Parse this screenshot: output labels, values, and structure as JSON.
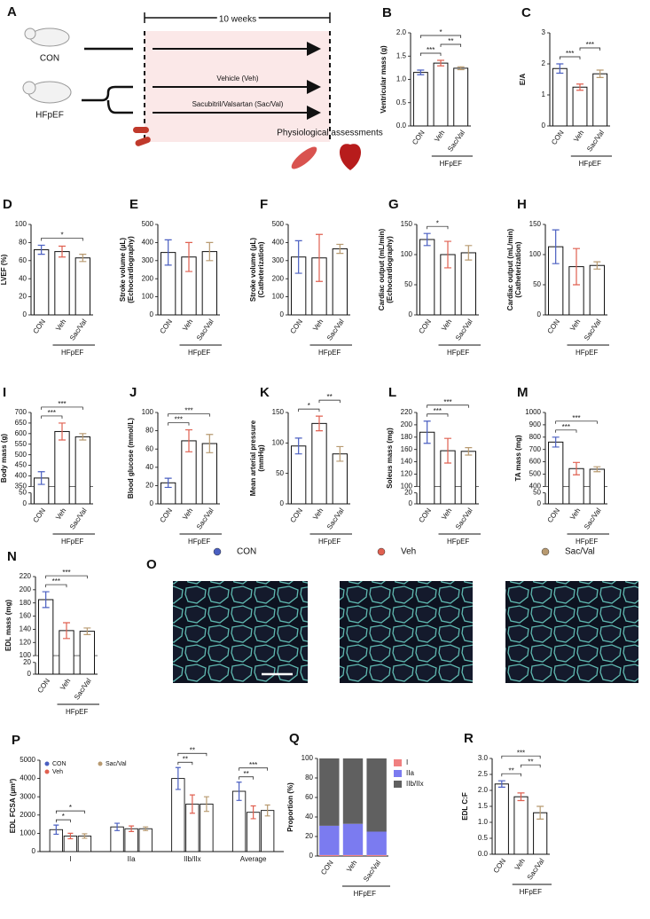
{
  "diagram": {
    "panel": "A",
    "duration": "10 weeks",
    "groups": [
      "CON",
      "HFpEF"
    ],
    "treatments": [
      "Vehicle (Veh)",
      "Sacubitril/Valsartan (Sac/Val)"
    ],
    "assessment": "Physiological assessments"
  },
  "histology": {
    "panel": "O",
    "legend": [
      {
        "name": "CON",
        "color": "#4a5fc1"
      },
      {
        "name": "Veh",
        "color": "#e06050"
      },
      {
        "name": "Sac/Val",
        "color": "#b89a70"
      }
    ]
  },
  "chart_data": [
    {
      "type": "bar",
      "panel": "B",
      "ylabel": [
        "Ventricular mass (g)"
      ],
      "categories": [
        "CON",
        "Veh",
        "Sac/Val"
      ],
      "group_label": "HFpEF",
      "values": [
        1.15,
        1.35,
        1.24
      ],
      "errors": [
        0.05,
        0.06,
        0.03
      ],
      "colors": [
        "#4a5fc1",
        "#e06050",
        "#b89a70"
      ],
      "ylim": [
        0,
        2
      ],
      "yticks": [
        {
          "value": 0,
          "label": "0.0"
        },
        0.5,
        {
          "value": 1,
          "label": "1.0"
        },
        1.5,
        {
          "value": 2,
          "label": "2.0"
        }
      ],
      "significance": [
        {
          "pair": [
            "CON",
            "Veh"
          ],
          "label": "***"
        },
        {
          "pair": [
            "Veh",
            "Sac/Val"
          ],
          "label": "**"
        },
        {
          "pair": [
            "CON",
            "Sac/Val"
          ],
          "label": "*"
        }
      ]
    },
    {
      "type": "bar",
      "panel": "C",
      "ylabel": [
        "E/A"
      ],
      "categories": [
        "CON",
        "Veh",
        "Sac/Val"
      ],
      "group_label": "HFpEF",
      "values": [
        1.85,
        1.25,
        1.68
      ],
      "errors": [
        0.15,
        0.1,
        0.12
      ],
      "colors": [
        "#4a5fc1",
        "#e06050",
        "#b89a70"
      ],
      "ylim": [
        0,
        3
      ],
      "yticks": [
        0,
        1,
        2,
        3
      ],
      "significance": [
        {
          "pair": [
            "CON",
            "Veh"
          ],
          "label": "***"
        },
        {
          "pair": [
            "Veh",
            "Sac/Val"
          ],
          "label": "***"
        }
      ]
    },
    {
      "type": "bar",
      "panel": "D",
      "ylabel": [
        "LVEF (%)"
      ],
      "categories": [
        "CON",
        "Veh",
        "Sac/Val"
      ],
      "group_label": "HFpEF",
      "values": [
        72,
        70,
        63
      ],
      "errors": [
        5,
        6,
        4
      ],
      "colors": [
        "#4a5fc1",
        "#e06050",
        "#b89a70"
      ],
      "ylim": [
        0,
        100
      ],
      "yticks": [
        0,
        20,
        40,
        60,
        80,
        100
      ],
      "significance": [
        {
          "pair": [
            "CON",
            "Sac/Val"
          ],
          "label": "*"
        }
      ]
    },
    {
      "type": "bar",
      "panel": "E",
      "ylabel": [
        "Stroke volume (µL)",
        "(Echocardiography)"
      ],
      "categories": [
        "CON",
        "Veh",
        "Sac/Val"
      ],
      "group_label": "HFpEF",
      "values": [
        345,
        320,
        350
      ],
      "errors": [
        70,
        80,
        50
      ],
      "colors": [
        "#4a5fc1",
        "#e06050",
        "#b89a70"
      ],
      "ylim": [
        0,
        500
      ],
      "yticks": [
        0,
        100,
        200,
        300,
        400,
        500
      ]
    },
    {
      "type": "bar",
      "panel": "F",
      "ylabel": [
        "Stroke volume (µL)",
        "(Catheterization)"
      ],
      "categories": [
        "CON",
        "Veh",
        "Sac/Val"
      ],
      "group_label": "HFpEF",
      "values": [
        320,
        315,
        365
      ],
      "errors": [
        90,
        130,
        25
      ],
      "colors": [
        "#4a5fc1",
        "#e06050",
        "#b89a70"
      ],
      "ylim": [
        0,
        500
      ],
      "yticks": [
        0,
        100,
        200,
        300,
        400,
        500
      ]
    },
    {
      "type": "bar",
      "panel": "G",
      "ylabel": [
        "Cardiac output (mL/min)",
        "(Echocardiography)"
      ],
      "categories": [
        "CON",
        "Veh",
        "Sac/Val"
      ],
      "group_label": "HFpEF",
      "values": [
        125,
        100,
        103
      ],
      "errors": [
        10,
        22,
        12
      ],
      "colors": [
        "#4a5fc1",
        "#e06050",
        "#b89a70"
      ],
      "ylim": [
        0,
        150
      ],
      "yticks": [
        0,
        50,
        100,
        150
      ],
      "significance": [
        {
          "pair": [
            "CON",
            "Veh"
          ],
          "label": "*"
        }
      ]
    },
    {
      "type": "bar",
      "panel": "H",
      "ylabel": [
        "Cardiac output (mL/min)",
        "(Catheterization)"
      ],
      "categories": [
        "CON",
        "Veh",
        "Sac/Val"
      ],
      "group_label": "HFpEF",
      "values": [
        113,
        80,
        82
      ],
      "errors": [
        28,
        30,
        6
      ],
      "colors": [
        "#4a5fc1",
        "#e06050",
        "#b89a70"
      ],
      "ylim": [
        0,
        150
      ],
      "yticks": [
        0,
        50,
        100,
        150
      ]
    },
    {
      "type": "bar",
      "panel": "I",
      "ylabel": [
        "Body mass (g)"
      ],
      "categories": [
        "CON",
        "Veh",
        "Sac/Val"
      ],
      "group_label": "HFpEF",
      "values": [
        390,
        610,
        585
      ],
      "errors": [
        30,
        40,
        15
      ],
      "colors": [
        "#4a5fc1",
        "#e06050",
        "#b89a70"
      ],
      "ylim_lower": [
        0,
        50
      ],
      "yticks_lower": [
        0,
        50
      ],
      "ylim": [
        350,
        700
      ],
      "yticks": [
        350,
        400,
        450,
        500,
        550,
        600,
        650,
        700
      ],
      "significance": [
        {
          "pair": [
            "CON",
            "Veh"
          ],
          "label": "***"
        },
        {
          "pair": [
            "CON",
            "Sac/Val"
          ],
          "label": "***"
        }
      ]
    },
    {
      "type": "bar",
      "panel": "J",
      "ylabel": [
        "Blood glucose (mmol/L)"
      ],
      "categories": [
        "CON",
        "Veh",
        "Sac/Val"
      ],
      "group_label": "HFpEF",
      "values": [
        23,
        69,
        66
      ],
      "errors": [
        5,
        12,
        10
      ],
      "colors": [
        "#4a5fc1",
        "#e06050",
        "#b89a70"
      ],
      "ylim": [
        0,
        100
      ],
      "yticks": [
        0,
        20,
        40,
        60,
        80,
        100
      ],
      "significance": [
        {
          "pair": [
            "CON",
            "Veh"
          ],
          "label": "***"
        },
        {
          "pair": [
            "CON",
            "Sac/Val"
          ],
          "label": "***"
        }
      ]
    },
    {
      "type": "bar",
      "panel": "K",
      "ylabel": [
        "Mean arterial pressure",
        "(mmHg)"
      ],
      "categories": [
        "CON",
        "Veh",
        "Sac/Val"
      ],
      "group_label": "HFpEF",
      "values": [
        95,
        132,
        82
      ],
      "errors": [
        13,
        12,
        12
      ],
      "colors": [
        "#4a5fc1",
        "#e06050",
        "#b89a70"
      ],
      "ylim": [
        0,
        150
      ],
      "yticks": [
        0,
        50,
        100,
        150
      ],
      "significance": [
        {
          "pair": [
            "CON",
            "Veh"
          ],
          "label": "*"
        },
        {
          "pair": [
            "Veh",
            "Sac/Val"
          ],
          "label": "**"
        }
      ]
    },
    {
      "type": "bar",
      "panel": "L",
      "ylabel": [
        "Soleus mass (mg)"
      ],
      "categories": [
        "CON",
        "Veh",
        "Sac/Val"
      ],
      "group_label": "HFpEF",
      "values": [
        188,
        158,
        157
      ],
      "errors": [
        18,
        20,
        6
      ],
      "colors": [
        "#4a5fc1",
        "#e06050",
        "#b89a70"
      ],
      "ylim_lower": [
        0,
        20
      ],
      "yticks_lower": [
        0,
        20
      ],
      "ylim": [
        100,
        220
      ],
      "yticks": [
        100,
        120,
        140,
        160,
        180,
        200,
        220
      ],
      "significance": [
        {
          "pair": [
            "CON",
            "Veh"
          ],
          "label": "***"
        },
        {
          "pair": [
            "CON",
            "Sac/Val"
          ],
          "label": "***"
        }
      ]
    },
    {
      "type": "bar",
      "panel": "M",
      "ylabel": [
        "TA mass (mg)"
      ],
      "categories": [
        "CON",
        "Veh",
        "Sac/Val"
      ],
      "group_label": "HFpEF",
      "values": [
        760,
        545,
        540
      ],
      "errors": [
        40,
        50,
        20
      ],
      "colors": [
        "#4a5fc1",
        "#e06050",
        "#b89a70"
      ],
      "ylim_lower": [
        0,
        50
      ],
      "yticks_lower": [
        0,
        50
      ],
      "ylim": [
        400,
        1000
      ],
      "yticks": [
        400,
        500,
        600,
        700,
        800,
        900,
        1000
      ],
      "significance": [
        {
          "pair": [
            "CON",
            "Veh"
          ],
          "label": "***"
        },
        {
          "pair": [
            "CON",
            "Sac/Val"
          ],
          "label": "***"
        }
      ]
    },
    {
      "type": "bar",
      "panel": "N",
      "ylabel": [
        "EDL mass (mg)"
      ],
      "categories": [
        "CON",
        "Veh",
        "Sac/Val"
      ],
      "group_label": "HFpEF",
      "values": [
        185,
        138,
        137
      ],
      "errors": [
        12,
        12,
        5
      ],
      "colors": [
        "#4a5fc1",
        "#e06050",
        "#b89a70"
      ],
      "ylim_lower": [
        0,
        20
      ],
      "yticks_lower": [
        0,
        20
      ],
      "ylim": [
        100,
        220
      ],
      "yticks": [
        100,
        120,
        140,
        160,
        180,
        200,
        220
      ],
      "significance": [
        {
          "pair": [
            "CON",
            "Veh"
          ],
          "label": "***"
        },
        {
          "pair": [
            "CON",
            "Sac/Val"
          ],
          "label": "***"
        }
      ]
    },
    {
      "type": "grouped_bar",
      "panel": "P",
      "ylabel": [
        "EDL FCSA (µm²)"
      ],
      "categories": [
        "I",
        "IIa",
        "IIb/IIx",
        "Average"
      ],
      "series": [
        {
          "name": "CON",
          "color": "#4a5fc1",
          "values": [
            1200,
            1350,
            4000,
            3300
          ],
          "errors": [
            250,
            200,
            600,
            500
          ]
        },
        {
          "name": "Veh",
          "color": "#e06050",
          "values": [
            850,
            1250,
            2600,
            2150
          ],
          "errors": [
            150,
            150,
            500,
            350
          ]
        },
        {
          "name": "Sac/Val",
          "color": "#b89a70",
          "values": [
            850,
            1250,
            2600,
            2250
          ],
          "errors": [
            120,
            100,
            400,
            300
          ]
        }
      ],
      "ylim": [
        0,
        5000
      ],
      "yticks": [
        0,
        1000,
        2000,
        3000,
        4000,
        5000
      ],
      "significance": [
        {
          "category": "I",
          "pair": [
            "CON",
            "Veh"
          ],
          "label": "*"
        },
        {
          "category": "I",
          "pair": [
            "CON",
            "Sac/Val"
          ],
          "label": "*"
        },
        {
          "category": "IIb/IIx",
          "pair": [
            "CON",
            "Veh"
          ],
          "label": "**"
        },
        {
          "category": "IIb/IIx",
          "pair": [
            "CON",
            "Sac/Val"
          ],
          "label": "**"
        },
        {
          "category": "Average",
          "pair": [
            "CON",
            "Veh"
          ],
          "label": "**"
        },
        {
          "category": "Average",
          "pair": [
            "CON",
            "Sac/Val"
          ],
          "label": "***"
        }
      ]
    },
    {
      "type": "stacked_bar",
      "panel": "Q",
      "ylabel": [
        "Proportion (%)"
      ],
      "categories": [
        "CON",
        "Veh",
        "Sac/Val"
      ],
      "group_label": "HFpEF",
      "series": [
        {
          "name": "I",
          "color": "#f08080",
          "values": [
            1,
            1,
            1
          ]
        },
        {
          "name": "IIa",
          "color": "#7b7bf0",
          "values": [
            30,
            32,
            24
          ]
        },
        {
          "name": "IIb/IIx",
          "color": "#606060",
          "values": [
            69,
            67,
            75
          ]
        }
      ],
      "ylim": [
        0,
        100
      ],
      "yticks": [
        0,
        20,
        40,
        60,
        80,
        100
      ]
    },
    {
      "type": "bar",
      "panel": "R",
      "ylabel": [
        "EDL C:F"
      ],
      "categories": [
        "CON",
        "Veh",
        "Sac/Val"
      ],
      "group_label": "HFpEF",
      "values": [
        2.2,
        1.8,
        1.3
      ],
      "errors": [
        0.1,
        0.12,
        0.2
      ],
      "colors": [
        "#4a5fc1",
        "#e06050",
        "#b89a70"
      ],
      "ylim": [
        0,
        3
      ],
      "yticks": [
        {
          "value": 0,
          "label": "0.0"
        },
        0.5,
        {
          "value": 1,
          "label": "1.0"
        },
        1.5,
        {
          "value": 2,
          "label": "2.0"
        },
        2.5,
        {
          "value": 3,
          "label": "3.0"
        }
      ],
      "significance": [
        {
          "pair": [
            "CON",
            "Veh"
          ],
          "label": "**"
        },
        {
          "pair": [
            "Veh",
            "Sac/Val"
          ],
          "label": "**"
        },
        {
          "pair": [
            "CON",
            "Sac/Val"
          ],
          "label": "***"
        }
      ]
    }
  ]
}
